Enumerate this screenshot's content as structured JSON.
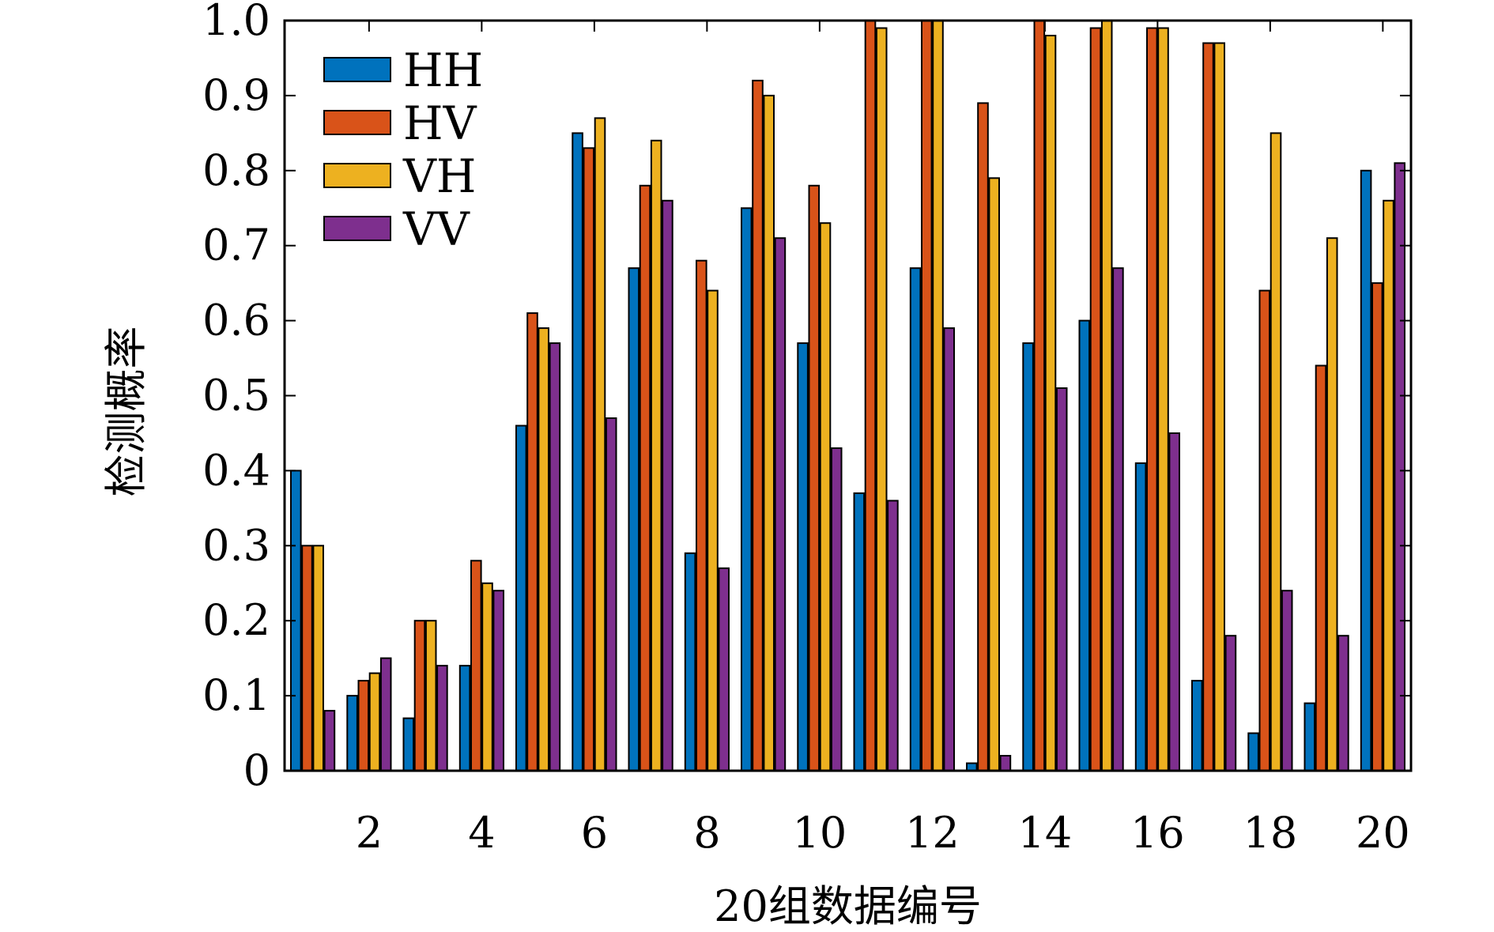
{
  "chart_data": {
    "type": "bar",
    "title": "",
    "xlabel": "20组数据编号",
    "ylabel": "检测概率",
    "x": [
      1,
      2,
      3,
      4,
      5,
      6,
      7,
      8,
      9,
      10,
      11,
      12,
      13,
      14,
      15,
      16,
      17,
      18,
      19,
      20
    ],
    "xticks": [
      2,
      4,
      6,
      8,
      10,
      12,
      14,
      16,
      18,
      20
    ],
    "yticks": [
      "0",
      "0.1",
      "0.2",
      "0.3",
      "0.4",
      "0.5",
      "0.6",
      "0.7",
      "0.8",
      "0.9",
      "1.0"
    ],
    "ylim": [
      0,
      1.0
    ],
    "legend_position": "top-left",
    "grid": false,
    "series": [
      {
        "name": "HH",
        "color": "#0072BD",
        "values": [
          0.4,
          0.1,
          0.07,
          0.14,
          0.46,
          0.85,
          0.67,
          0.29,
          0.75,
          0.57,
          0.37,
          0.67,
          0.01,
          0.57,
          0.6,
          0.41,
          0.12,
          0.05,
          0.09,
          0.8
        ]
      },
      {
        "name": "HV",
        "color": "#D95319",
        "values": [
          0.3,
          0.12,
          0.2,
          0.28,
          0.61,
          0.83,
          0.78,
          0.68,
          0.92,
          0.78,
          1.0,
          1.0,
          0.89,
          1.0,
          0.99,
          0.99,
          0.97,
          0.64,
          0.54,
          0.65
        ]
      },
      {
        "name": "VH",
        "color": "#EDB120",
        "values": [
          0.3,
          0.13,
          0.2,
          0.25,
          0.59,
          0.87,
          0.84,
          0.64,
          0.9,
          0.73,
          0.99,
          1.0,
          0.79,
          0.98,
          1.0,
          0.99,
          0.97,
          0.85,
          0.71,
          0.76
        ]
      },
      {
        "name": "VV",
        "color": "#7E2F8E",
        "values": [
          0.08,
          0.15,
          0.14,
          0.24,
          0.57,
          0.47,
          0.76,
          0.27,
          0.71,
          0.43,
          0.36,
          0.59,
          0.02,
          0.51,
          0.67,
          0.45,
          0.18,
          0.24,
          0.18,
          0.81
        ]
      }
    ]
  }
}
